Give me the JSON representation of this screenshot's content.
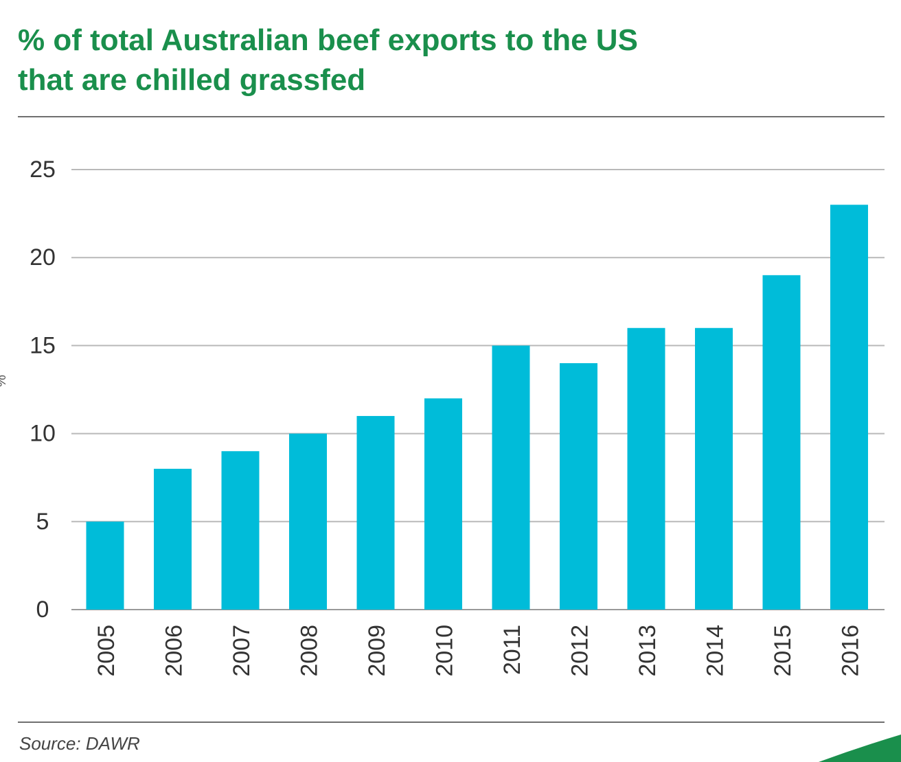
{
  "title_lines": [
    "% of total Australian beef exports to the US",
    "that are chilled grassfed"
  ],
  "source": "Source: DAWR",
  "colors": {
    "bar": "#00bcd9",
    "title": "#1a8f4c",
    "grid": "#b9b9b9",
    "axis": "#999999",
    "tick_text": "#333333",
    "corner_accent": "#1a8f4c"
  },
  "chart_data": {
    "type": "bar",
    "title": "% of total Australian beef exports to the US that are chilled grassfed",
    "categories": [
      "2005",
      "2006",
      "2007",
      "2008",
      "2009",
      "2010",
      "2011",
      "2012",
      "2013",
      "2014",
      "2015",
      "2016"
    ],
    "values": [
      5,
      8,
      9,
      10,
      11,
      12,
      15,
      14,
      16,
      16,
      19,
      23
    ],
    "ylabel": "%",
    "xlabel": "",
    "ylim": [
      0,
      25
    ],
    "yticks": [
      0,
      5,
      10,
      15,
      20,
      25
    ],
    "grid": true,
    "legend": "none"
  }
}
